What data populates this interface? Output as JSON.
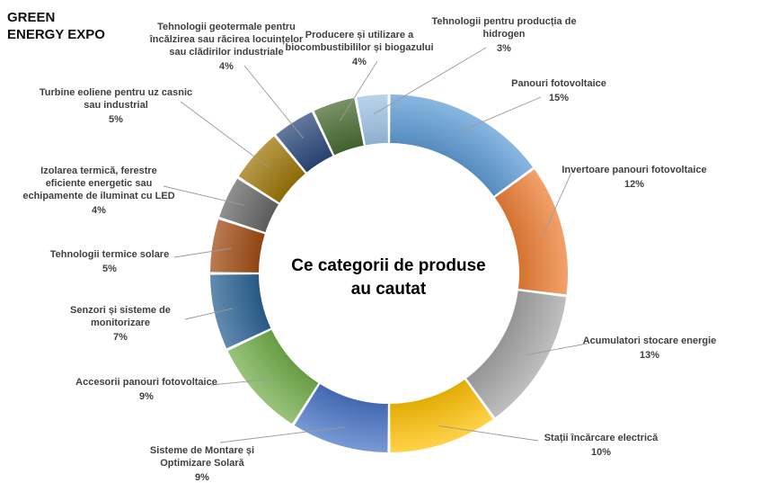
{
  "brand": {
    "line1": "GREEN",
    "line2": "ENERGY EXPO"
  },
  "chart_data": {
    "type": "pie",
    "title": "Ce categorii de produse au cautat",
    "title_lines": [
      "Ce categorii de produse",
      "au cautat"
    ],
    "unit": "%",
    "donut": true,
    "legend": "none",
    "slices": [
      {
        "label": "Panouri  fotovoltaice",
        "label_lines": [
          "Panouri  fotovoltaice"
        ],
        "value": 15,
        "color": "#5b9bd5"
      },
      {
        "label": "Invertoare panouri  fotovoltaice",
        "label_lines": [
          "Invertoare panouri  fotovoltaice"
        ],
        "value": 12,
        "color": "#ed7d31"
      },
      {
        "label": "Acumulatori stocare energie",
        "label_lines": [
          "Acumulatori stocare energie"
        ],
        "value": 13,
        "color": "#a5a5a5"
      },
      {
        "label": "Stații încărcare electrică",
        "label_lines": [
          "Stații încărcare electrică"
        ],
        "value": 10,
        "color": "#ffc000"
      },
      {
        "label": "Sisteme de Montare și Optimizare Solară",
        "label_lines": [
          "Sisteme de Montare și",
          "Optimizare Solară"
        ],
        "value": 9,
        "color": "#4472c4"
      },
      {
        "label": "Accesorii panouri  fotovoltaice",
        "label_lines": [
          "Accesorii panouri  fotovoltaice"
        ],
        "value": 9,
        "color": "#70ad47"
      },
      {
        "label": "Senzori și sisteme de monitorizare",
        "label_lines": [
          "Senzori și sisteme de",
          "monitorizare"
        ],
        "value": 7,
        "color": "#255e91"
      },
      {
        "label": "Tehnologii termice solare",
        "label_lines": [
          "Tehnologii termice solare"
        ],
        "value": 5,
        "color": "#9e480e"
      },
      {
        "label": "Izolarea termică, ferestre eficiente energetic sau echipamente de iluminat cu LED",
        "label_lines": [
          "Izolarea termică, ferestre",
          "eficiente energetic sau",
          "echipamente de iluminat cu LED"
        ],
        "value": 4,
        "color": "#636363"
      },
      {
        "label": "Turbine eoliene pentru uz casnic sau industrial",
        "label_lines": [
          "Turbine eoliene pentru uz casnic",
          "sau industrial"
        ],
        "value": 5,
        "color": "#997300"
      },
      {
        "label": "Tehnologii geotermale pentru încălzirea sau răcirea locuințelor sau clădirilor industriale",
        "label_lines": [
          "Tehnologii  geotermale pentru",
          "încălzirea sau răcirea locuințelor",
          "sau clădirilor industriale"
        ],
        "value": 4,
        "color": "#264478"
      },
      {
        "label": "Producere  și utilizare a biocombustibililor  și biogazului",
        "label_lines": [
          "Producere  și utilizare a",
          "biocombustibililor  și biogazului"
        ],
        "value": 4,
        "color": "#43682b"
      },
      {
        "label": "Tehnologii  pentru  producția de hidrogen",
        "label_lines": [
          "Tehnologii  pentru  producția de",
          "hidrogen"
        ],
        "value": 3,
        "color": "#9dc3e6"
      }
    ]
  }
}
